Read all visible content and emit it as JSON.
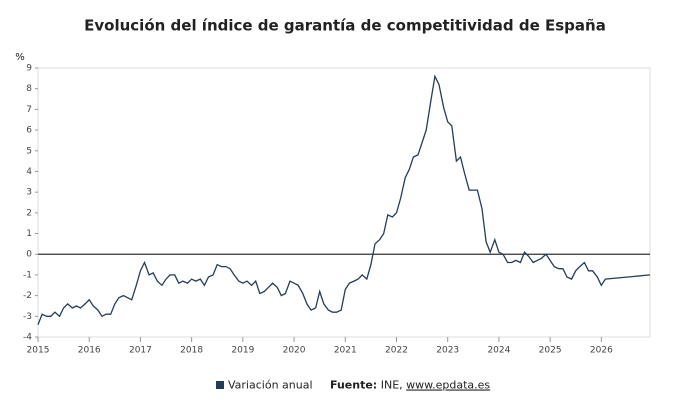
{
  "chart_data": {
    "type": "line",
    "title": "Evolución del índice de garantía de competitividad de España",
    "y_label": "%",
    "x": [
      2015.0,
      2015.08,
      2015.17,
      2015.25,
      2015.33,
      2015.42,
      2015.5,
      2015.58,
      2015.67,
      2015.75,
      2015.83,
      2015.92,
      2016.0,
      2016.08,
      2016.17,
      2016.25,
      2016.33,
      2016.42,
      2016.5,
      2016.58,
      2016.67,
      2016.75,
      2016.83,
      2016.92,
      2017.0,
      2017.08,
      2017.17,
      2017.25,
      2017.33,
      2017.42,
      2017.5,
      2017.58,
      2017.67,
      2017.75,
      2017.83,
      2017.92,
      2018.0,
      2018.08,
      2018.17,
      2018.25,
      2018.33,
      2018.42,
      2018.5,
      2018.58,
      2018.67,
      2018.75,
      2018.83,
      2018.92,
      2019.0,
      2019.08,
      2019.17,
      2019.25,
      2019.33,
      2019.42,
      2019.5,
      2019.58,
      2019.67,
      2019.75,
      2019.83,
      2019.92,
      2020.0,
      2020.08,
      2020.17,
      2020.25,
      2020.33,
      2020.42,
      2020.5,
      2020.58,
      2020.67,
      2020.75,
      2020.83,
      2020.92,
      2021.0,
      2021.08,
      2021.17,
      2021.25,
      2021.33,
      2021.42,
      2021.5,
      2021.58,
      2021.67,
      2021.75,
      2021.83,
      2021.92,
      2022.0,
      2022.08,
      2022.17,
      2022.25,
      2022.33,
      2022.42,
      2022.5,
      2022.58,
      2022.67,
      2022.75,
      2022.83,
      2022.92,
      2023.0,
      2023.08,
      2023.17,
      2023.25,
      2023.33,
      2023.42,
      2023.5,
      2023.58,
      2023.67,
      2023.75,
      2023.83,
      2023.92,
      2024.0,
      2024.08,
      2024.17,
      2024.25,
      2024.33,
      2024.42,
      2024.5,
      2024.58,
      2024.67,
      2024.75,
      2024.83,
      2024.92,
      2025.0,
      2025.08,
      2025.17,
      2025.25,
      2025.33,
      2025.42,
      2025.5,
      2025.58,
      2025.67,
      2025.75,
      2025.83,
      2025.92,
      2026.0,
      2026.08,
      2026.95
    ],
    "series": [
      {
        "name": "Variación anual",
        "color": "#253d56",
        "values": [
          -3.4,
          -2.9,
          -3.0,
          -3.0,
          -2.8,
          -3.0,
          -2.6,
          -2.4,
          -2.6,
          -2.5,
          -2.6,
          -2.4,
          -2.2,
          -2.5,
          -2.7,
          -3.0,
          -2.9,
          -2.9,
          -2.4,
          -2.1,
          -2.0,
          -2.1,
          -2.2,
          -1.5,
          -0.8,
          -0.4,
          -1.0,
          -0.9,
          -1.3,
          -1.5,
          -1.2,
          -1.0,
          -1.0,
          -1.4,
          -1.3,
          -1.4,
          -1.2,
          -1.3,
          -1.2,
          -1.5,
          -1.1,
          -1.0,
          -0.5,
          -0.6,
          -0.6,
          -0.7,
          -1.0,
          -1.3,
          -1.4,
          -1.3,
          -1.5,
          -1.3,
          -1.9,
          -1.8,
          -1.6,
          -1.4,
          -1.6,
          -2.0,
          -1.9,
          -1.3,
          -1.4,
          -1.5,
          -1.9,
          -2.4,
          -2.7,
          -2.6,
          -1.8,
          -2.4,
          -2.7,
          -2.8,
          -2.8,
          -2.7,
          -1.7,
          -1.4,
          -1.3,
          -1.2,
          -1.0,
          -1.2,
          -0.5,
          0.5,
          0.7,
          1.0,
          1.9,
          1.8,
          2.0,
          2.7,
          3.7,
          4.1,
          4.7,
          4.8,
          5.4,
          6.0,
          7.4,
          8.6,
          8.2,
          7.1,
          6.4,
          6.2,
          4.5,
          4.7,
          3.9,
          3.1,
          3.1,
          3.1,
          2.2,
          0.6,
          0.1,
          0.7,
          0.1,
          0.0,
          -0.4,
          -0.4,
          -0.3,
          -0.4,
          0.1,
          -0.1,
          -0.4,
          -0.3,
          -0.2,
          0.0,
          -0.3,
          -0.6,
          -0.7,
          -0.7,
          -1.1,
          -1.2,
          -0.8,
          -0.6,
          -0.4,
          -0.8,
          -0.8,
          -1.1,
          -1.5,
          -1.2,
          -1.0
        ]
      }
    ],
    "xlim": [
      2015,
      2026.95
    ],
    "xticks": [
      2015,
      2016,
      2017,
      2018,
      2019,
      2020,
      2021,
      2022,
      2023,
      2024,
      2025,
      2026
    ],
    "ylim": [
      -4,
      9
    ],
    "yticks": [
      -4,
      -3,
      -2,
      -1,
      0,
      1,
      2,
      3,
      4,
      5,
      6,
      7,
      8,
      9
    ],
    "source_label": "Fuente:",
    "source_text": "INE, ",
    "source_link": "www.epdata.es"
  }
}
